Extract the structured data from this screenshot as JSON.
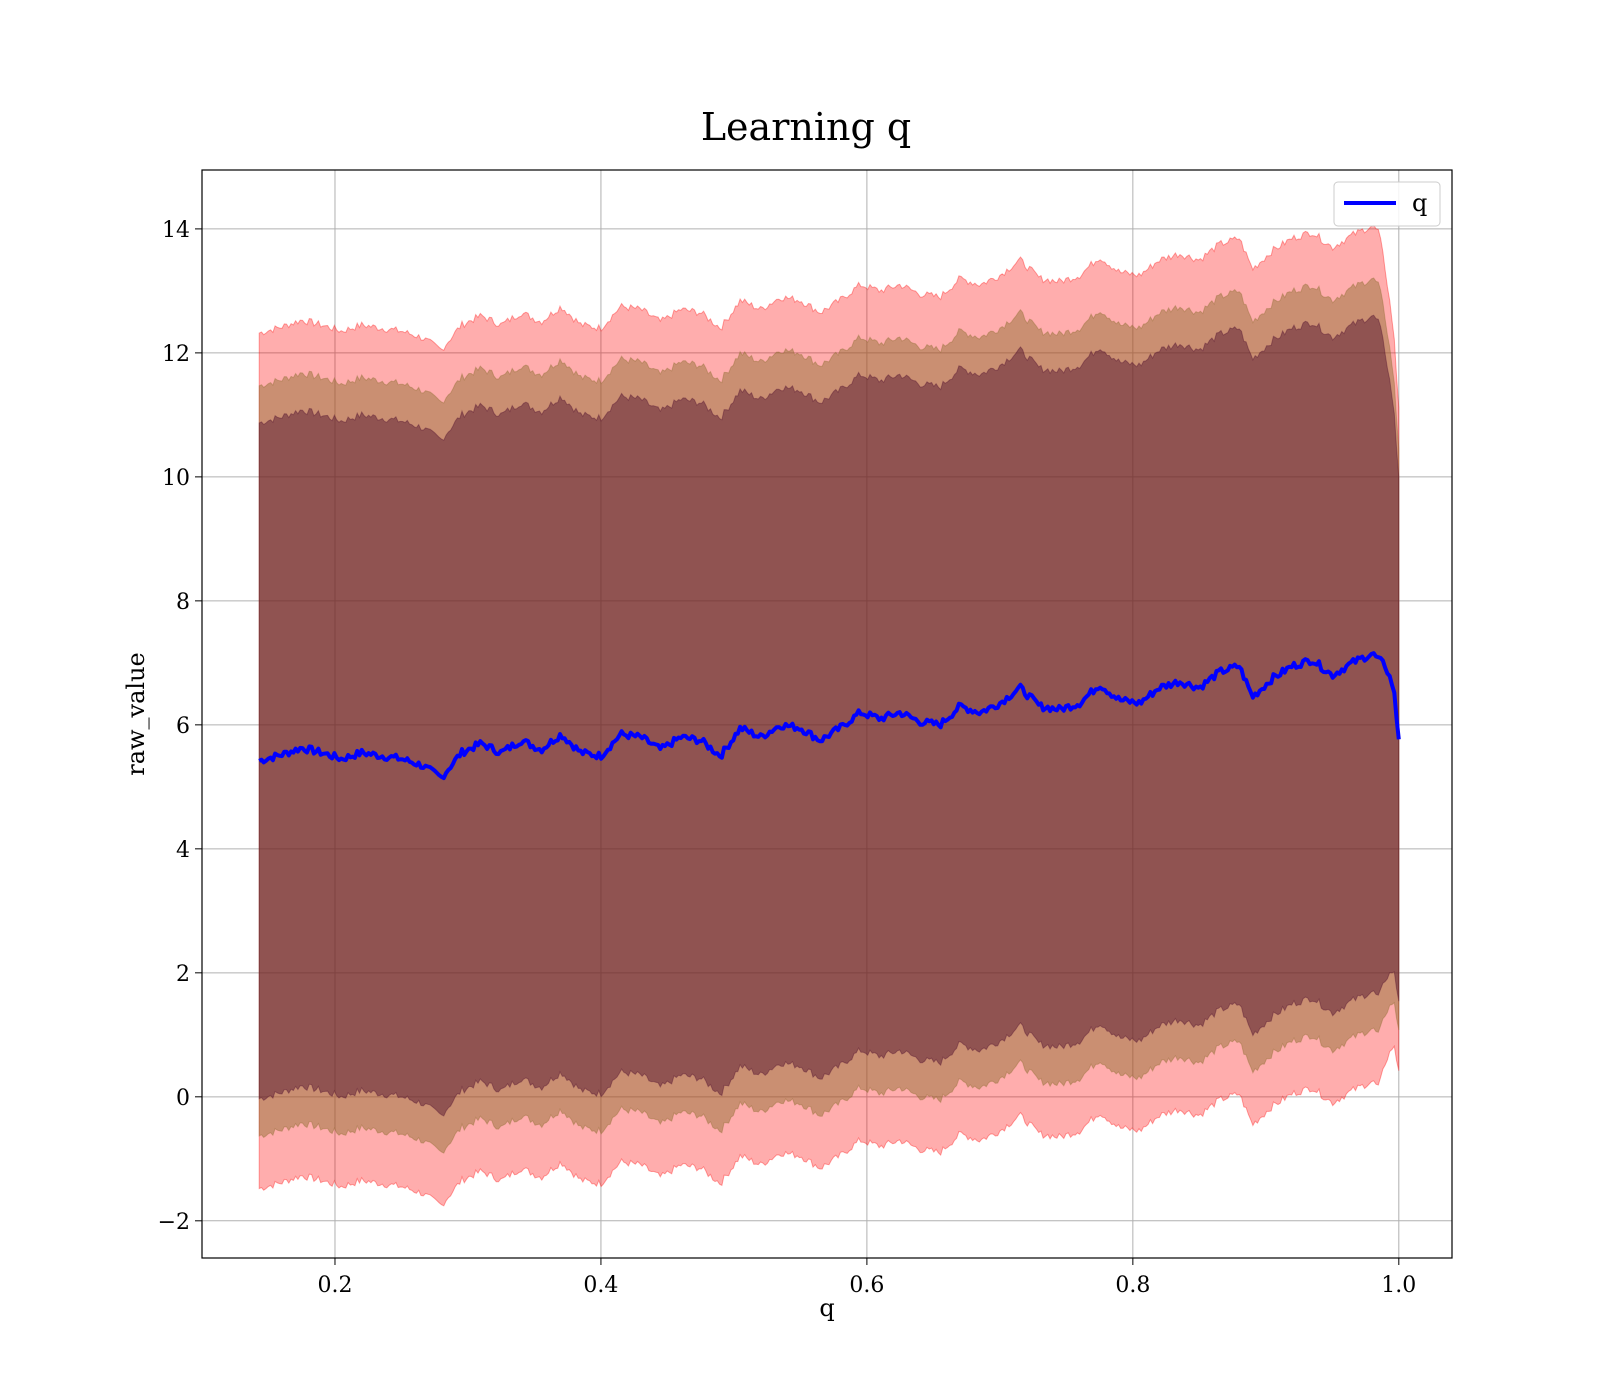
{
  "chart_data": {
    "type": "line",
    "title": "Learning q",
    "xlabel": "q",
    "ylabel": "raw_value",
    "xlim": [
      0.1,
      1.04
    ],
    "ylim": [
      -2.6,
      14.95
    ],
    "xticks": [
      0.2,
      0.4,
      0.6,
      0.8,
      1.0
    ],
    "xtick_labels": [
      "0.2",
      "0.4",
      "0.6",
      "0.8",
      "1.0"
    ],
    "yticks": [
      -2,
      0,
      2,
      4,
      6,
      8,
      10,
      12,
      14
    ],
    "ytick_labels": [
      "−2",
      "0",
      "2",
      "4",
      "6",
      "8",
      "10",
      "12",
      "14"
    ],
    "grid": true,
    "legend": {
      "placement": "top-right",
      "entries": [
        "q"
      ]
    },
    "colors": {
      "line": "#0000ff",
      "band": "#ff0000",
      "inner": "#4a0a2a",
      "middle": "#8a6a2a"
    },
    "series": [
      {
        "name": "q",
        "x": [
          0.143,
          0.16,
          0.175,
          0.19,
          0.205,
          0.22,
          0.235,
          0.25,
          0.265,
          0.28,
          0.295,
          0.31,
          0.325,
          0.34,
          0.355,
          0.37,
          0.385,
          0.4,
          0.415,
          0.43,
          0.445,
          0.46,
          0.475,
          0.49,
          0.505,
          0.52,
          0.535,
          0.55,
          0.565,
          0.58,
          0.595,
          0.61,
          0.625,
          0.64,
          0.655,
          0.67,
          0.685,
          0.7,
          0.715,
          0.73,
          0.745,
          0.76,
          0.775,
          0.79,
          0.805,
          0.82,
          0.835,
          0.85,
          0.865,
          0.88,
          0.89,
          0.905,
          0.92,
          0.935,
          0.95,
          0.965,
          0.98,
          0.99,
          0.996,
          1.0
        ],
        "y": [
          5.42,
          5.52,
          5.63,
          5.55,
          5.45,
          5.55,
          5.5,
          5.45,
          5.35,
          5.15,
          5.55,
          5.7,
          5.55,
          5.75,
          5.6,
          5.85,
          5.55,
          5.5,
          5.85,
          5.8,
          5.6,
          5.8,
          5.75,
          5.5,
          5.95,
          5.8,
          6.0,
          5.95,
          5.75,
          5.95,
          6.2,
          6.1,
          6.2,
          6.05,
          6.0,
          6.3,
          6.2,
          6.35,
          6.6,
          6.3,
          6.25,
          6.35,
          6.65,
          6.4,
          6.35,
          6.6,
          6.7,
          6.6,
          6.85,
          6.95,
          6.45,
          6.75,
          6.95,
          7.05,
          6.8,
          7.0,
          7.15,
          6.95,
          6.6,
          5.78
        ]
      }
    ]
  }
}
